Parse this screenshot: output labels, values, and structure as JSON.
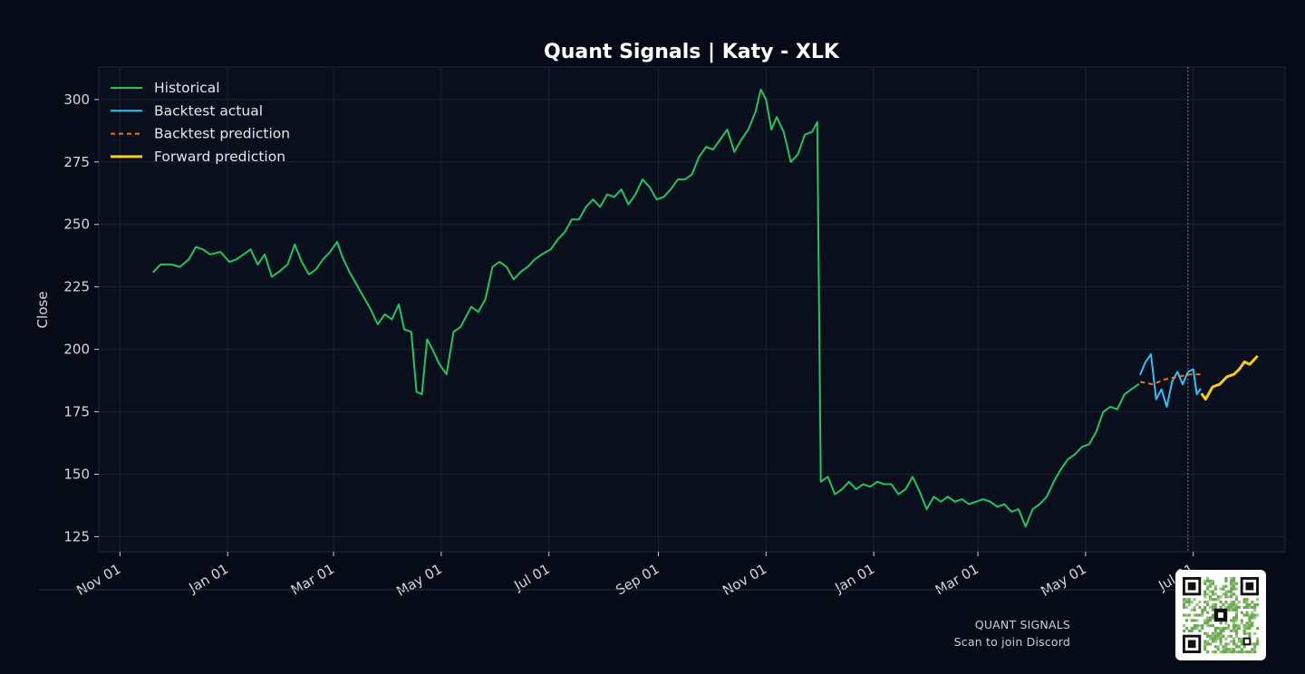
{
  "chart_data": {
    "type": "line",
    "title": "Quant Signals | Katy - XLK",
    "xlabel": "",
    "ylabel": "Close",
    "x_tick_labels": [
      "Nov 01",
      "Jan 01",
      "Mar 01",
      "May 01",
      "Jul 01",
      "Sep 01",
      "Nov 01",
      "Jan 01",
      "Mar 01",
      "May 01",
      "Jul 01"
    ],
    "x_tick_dates": [
      "2023-11-01",
      "2024-01-01",
      "2024-03-01",
      "2024-05-01",
      "2024-07-01",
      "2024-09-01",
      "2024-11-01",
      "2025-01-01",
      "2025-03-01",
      "2025-05-01",
      "2025-07-01"
    ],
    "y_ticks": [
      125,
      150,
      175,
      200,
      225,
      250,
      275,
      300
    ],
    "xlim": [
      "2023-10-20",
      "2025-08-22"
    ],
    "ylim": [
      119,
      313
    ],
    "grid": true,
    "legend_position": "top-left",
    "forecast_start": "2025-06-28",
    "series": [
      {
        "name": "Historical",
        "color": "#22c55e",
        "style": "solid",
        "points": [
          [
            "2023-11-20",
            231
          ],
          [
            "2023-11-24",
            234
          ],
          [
            "2023-11-30",
            234
          ],
          [
            "2023-12-05",
            233
          ],
          [
            "2023-12-10",
            236
          ],
          [
            "2023-12-14",
            241
          ],
          [
            "2023-12-18",
            240
          ],
          [
            "2023-12-22",
            238
          ],
          [
            "2023-12-28",
            239
          ],
          [
            "2024-01-02",
            235
          ],
          [
            "2024-01-06",
            236
          ],
          [
            "2024-01-10",
            238
          ],
          [
            "2024-01-14",
            240
          ],
          [
            "2024-01-18",
            234
          ],
          [
            "2024-01-22",
            238
          ],
          [
            "2024-01-26",
            229
          ],
          [
            "2024-01-30",
            231
          ],
          [
            "2024-02-04",
            234
          ],
          [
            "2024-02-08",
            242
          ],
          [
            "2024-02-12",
            235
          ],
          [
            "2024-02-16",
            230
          ],
          [
            "2024-02-20",
            232
          ],
          [
            "2024-02-24",
            236
          ],
          [
            "2024-02-28",
            239
          ],
          [
            "2024-03-03",
            243
          ],
          [
            "2024-03-06",
            237
          ],
          [
            "2024-03-10",
            231
          ],
          [
            "2024-03-14",
            226
          ],
          [
            "2024-03-18",
            221
          ],
          [
            "2024-03-22",
            216
          ],
          [
            "2024-03-26",
            210
          ],
          [
            "2024-03-30",
            214
          ],
          [
            "2024-04-03",
            212
          ],
          [
            "2024-04-07",
            218
          ],
          [
            "2024-04-10",
            208
          ],
          [
            "2024-04-14",
            207
          ],
          [
            "2024-04-17",
            183
          ],
          [
            "2024-04-20",
            182
          ],
          [
            "2024-04-23",
            204
          ],
          [
            "2024-04-26",
            200
          ],
          [
            "2024-04-30",
            194
          ],
          [
            "2024-05-04",
            190
          ],
          [
            "2024-05-08",
            207
          ],
          [
            "2024-05-12",
            209
          ],
          [
            "2024-05-18",
            217
          ],
          [
            "2024-05-22",
            215
          ],
          [
            "2024-05-26",
            220
          ],
          [
            "2024-05-30",
            233
          ],
          [
            "2024-06-03",
            235
          ],
          [
            "2024-06-07",
            233
          ],
          [
            "2024-06-11",
            228
          ],
          [
            "2024-06-15",
            231
          ],
          [
            "2024-06-19",
            233
          ],
          [
            "2024-06-23",
            236
          ],
          [
            "2024-06-27",
            238
          ],
          [
            "2024-07-02",
            240
          ],
          [
            "2024-07-06",
            244
          ],
          [
            "2024-07-10",
            247
          ],
          [
            "2024-07-14",
            252
          ],
          [
            "2024-07-18",
            252
          ],
          [
            "2024-07-22",
            257
          ],
          [
            "2024-07-26",
            260
          ],
          [
            "2024-07-30",
            257
          ],
          [
            "2024-08-03",
            262
          ],
          [
            "2024-08-07",
            261
          ],
          [
            "2024-08-11",
            264
          ],
          [
            "2024-08-15",
            258
          ],
          [
            "2024-08-19",
            262
          ],
          [
            "2024-08-23",
            268
          ],
          [
            "2024-08-27",
            265
          ],
          [
            "2024-08-31",
            260
          ],
          [
            "2024-09-04",
            261
          ],
          [
            "2024-09-08",
            264
          ],
          [
            "2024-09-12",
            268
          ],
          [
            "2024-09-16",
            268
          ],
          [
            "2024-09-20",
            270
          ],
          [
            "2024-09-24",
            277
          ],
          [
            "2024-09-28",
            281
          ],
          [
            "2024-10-02",
            280
          ],
          [
            "2024-10-06",
            284
          ],
          [
            "2024-10-10",
            288
          ],
          [
            "2024-10-14",
            279
          ],
          [
            "2024-10-18",
            284
          ],
          [
            "2024-10-22",
            288
          ],
          [
            "2024-10-26",
            295
          ],
          [
            "2024-10-29",
            304
          ],
          [
            "2024-11-01",
            300
          ],
          [
            "2024-11-04",
            288
          ],
          [
            "2024-11-07",
            293
          ],
          [
            "2024-11-11",
            287
          ],
          [
            "2024-11-15",
            275
          ],
          [
            "2024-11-19",
            278
          ],
          [
            "2024-11-23",
            286
          ],
          [
            "2024-11-27",
            287
          ],
          [
            "2024-11-30",
            291
          ],
          [
            "2024-12-02",
            147
          ],
          [
            "2024-12-06",
            149
          ],
          [
            "2024-12-10",
            142
          ],
          [
            "2024-12-14",
            144
          ],
          [
            "2024-12-18",
            147
          ],
          [
            "2024-12-22",
            144
          ],
          [
            "2024-12-26",
            146
          ],
          [
            "2024-12-30",
            145
          ],
          [
            "2025-01-03",
            147
          ],
          [
            "2025-01-07",
            146
          ],
          [
            "2025-01-11",
            146
          ],
          [
            "2025-01-15",
            142
          ],
          [
            "2025-01-19",
            144
          ],
          [
            "2025-01-23",
            149
          ],
          [
            "2025-01-27",
            143
          ],
          [
            "2025-01-31",
            136
          ],
          [
            "2025-02-04",
            141
          ],
          [
            "2025-02-08",
            139
          ],
          [
            "2025-02-12",
            141
          ],
          [
            "2025-02-16",
            139
          ],
          [
            "2025-02-20",
            140
          ],
          [
            "2025-02-24",
            138
          ],
          [
            "2025-02-28",
            139
          ],
          [
            "2025-03-04",
            140
          ],
          [
            "2025-03-08",
            139
          ],
          [
            "2025-03-12",
            137
          ],
          [
            "2025-03-16",
            138
          ],
          [
            "2025-03-20",
            135
          ],
          [
            "2025-03-24",
            136
          ],
          [
            "2025-03-28",
            129
          ],
          [
            "2025-04-01",
            136
          ],
          [
            "2025-04-05",
            138
          ],
          [
            "2025-04-09",
            141
          ],
          [
            "2025-04-13",
            147
          ],
          [
            "2025-04-17",
            152
          ],
          [
            "2025-04-21",
            156
          ],
          [
            "2025-04-25",
            158
          ],
          [
            "2025-04-29",
            161
          ],
          [
            "2025-05-03",
            162
          ],
          [
            "2025-05-07",
            167
          ],
          [
            "2025-05-11",
            175
          ],
          [
            "2025-05-15",
            177
          ],
          [
            "2025-05-19",
            176
          ],
          [
            "2025-05-23",
            182
          ],
          [
            "2025-05-27",
            184
          ],
          [
            "2025-05-31",
            186
          ]
        ]
      },
      {
        "name": "Backtest actual",
        "color": "#38bdf8",
        "style": "solid",
        "points": [
          [
            "2025-06-01",
            190
          ],
          [
            "2025-06-04",
            195
          ],
          [
            "2025-06-07",
            198
          ],
          [
            "2025-06-10",
            180
          ],
          [
            "2025-06-13",
            184
          ],
          [
            "2025-06-16",
            177
          ],
          [
            "2025-06-19",
            187
          ],
          [
            "2025-06-22",
            191
          ],
          [
            "2025-06-25",
            186
          ],
          [
            "2025-06-28",
            191
          ],
          [
            "2025-07-01",
            192
          ],
          [
            "2025-07-03",
            182
          ],
          [
            "2025-07-05",
            184
          ]
        ]
      },
      {
        "name": "Backtest prediction",
        "color": "#f97316",
        "style": "dashed",
        "points": [
          [
            "2025-06-01",
            187
          ],
          [
            "2025-06-08",
            186
          ],
          [
            "2025-06-15",
            188
          ],
          [
            "2025-06-22",
            189
          ],
          [
            "2025-06-29",
            190
          ],
          [
            "2025-07-05",
            190
          ]
        ]
      },
      {
        "name": "Forward prediction",
        "color": "#facc15",
        "style": "solid-thick",
        "points": [
          [
            "2025-07-06",
            182
          ],
          [
            "2025-07-08",
            180
          ],
          [
            "2025-07-12",
            185
          ],
          [
            "2025-07-16",
            186
          ],
          [
            "2025-07-20",
            189
          ],
          [
            "2025-07-24",
            190
          ],
          [
            "2025-07-27",
            192
          ],
          [
            "2025-07-30",
            195
          ],
          [
            "2025-08-02",
            194
          ],
          [
            "2025-08-06",
            197
          ]
        ]
      }
    ]
  },
  "footer": {
    "brand": "QUANT SIGNALS",
    "cta": "Scan to join Discord"
  }
}
